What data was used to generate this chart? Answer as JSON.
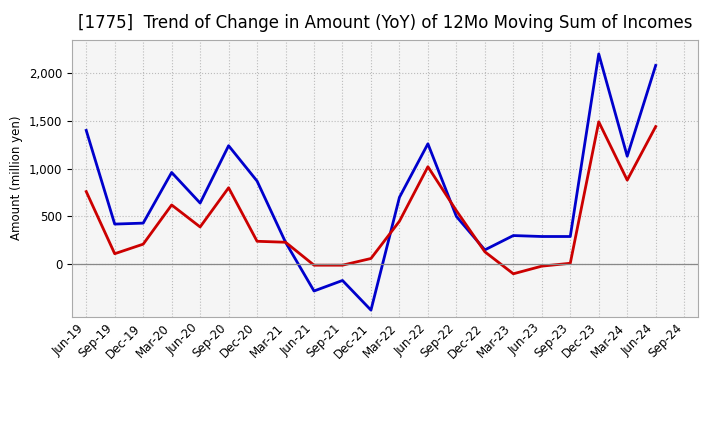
{
  "title": "[1775]  Trend of Change in Amount (YoY) of 12Mo Moving Sum of Incomes",
  "ylabel": "Amount (million yen)",
  "x_labels": [
    "Jun-19",
    "Sep-19",
    "Dec-19",
    "Mar-20",
    "Jun-20",
    "Sep-20",
    "Dec-20",
    "Mar-21",
    "Jun-21",
    "Sep-21",
    "Dec-21",
    "Mar-22",
    "Jun-22",
    "Sep-22",
    "Dec-22",
    "Mar-23",
    "Jun-23",
    "Sep-23",
    "Dec-23",
    "Mar-24",
    "Jun-24",
    "Sep-24"
  ],
  "ordinary_income": [
    1400,
    420,
    430,
    960,
    640,
    1240,
    870,
    230,
    -280,
    -170,
    -480,
    700,
    1260,
    500,
    150,
    300,
    290,
    290,
    2200,
    1130,
    2080,
    null
  ],
  "net_income": [
    760,
    110,
    210,
    620,
    390,
    800,
    240,
    230,
    -10,
    -10,
    60,
    450,
    1020,
    560,
    130,
    -100,
    -20,
    10,
    1490,
    880,
    1440,
    null
  ],
  "ordinary_income_color": "#0000cc",
  "net_income_color": "#cc0000",
  "background_color": "#ffffff",
  "plot_bg_color": "#f5f5f5",
  "grid_color": "#bbbbbb",
  "ylim": [
    -550,
    2350
  ],
  "yticks": [
    0,
    500,
    1000,
    1500,
    2000
  ],
  "title_fontsize": 12,
  "legend_fontsize": 10,
  "axis_fontsize": 8.5
}
